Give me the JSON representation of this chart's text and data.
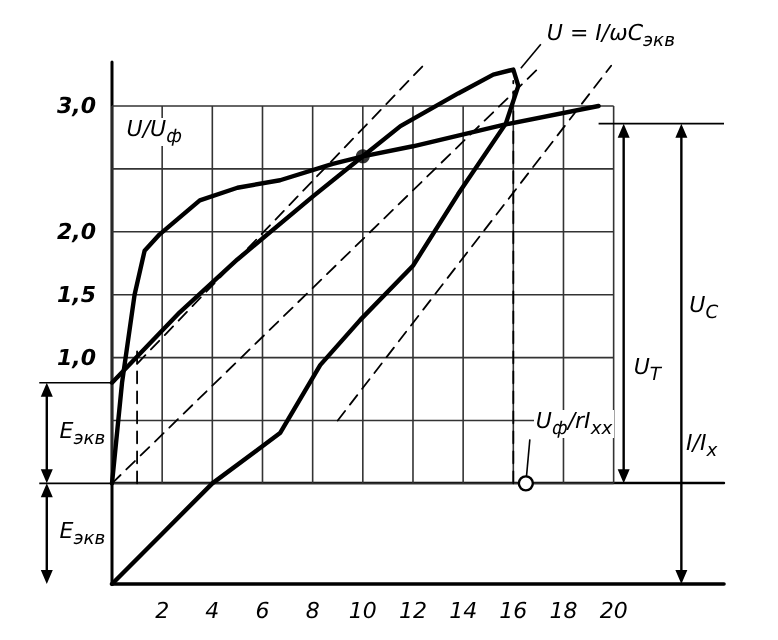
{
  "chart_data": {
    "type": "line",
    "xlabel": "I/I$_{x}$",
    "ylabel": "U/U$_{ф}$",
    "xlim": [
      0,
      24.4
    ],
    "ylim": [
      -0.8,
      3.35
    ],
    "xticks": [
      {
        "value": 0,
        "label": null
      },
      2,
      4,
      6,
      8,
      10,
      12,
      14,
      16,
      18,
      20
    ],
    "yticks": [
      {
        "value": 0,
        "label": null
      },
      {
        "value": 0.5,
        "label": null
      },
      {
        "value": 1,
        "label": "1,0"
      },
      {
        "value": 1.5,
        "label": "1,5"
      },
      {
        "value": 2,
        "label": "2,0"
      },
      {
        "value": 2.5,
        "label": null
      },
      {
        "value": 3,
        "label": "3,0"
      }
    ],
    "grid": true,
    "series": [
      {
        "color": "#000000",
        "line_style": "solid",
        "x": [
          0,
          0.4,
          0.9,
          1.3,
          1.9,
          3.5,
          5,
          6.7,
          8.8,
          10,
          12,
          15.6,
          19.4
        ],
        "values": [
          0,
          0.8,
          1.5,
          1.85,
          1.98,
          2.25,
          2.35,
          2.41,
          2.54,
          2.6,
          2.68,
          2.85,
          3.0
        ]
      },
      {
        "color": "#000000",
        "line_style": "solid",
        "x": [
          0,
          2.7,
          5,
          8,
          10,
          11.5,
          13.8,
          15.2,
          16,
          16.2,
          15.7,
          13.8,
          12,
          9.9,
          8.3,
          6.7,
          4,
          2,
          0
        ],
        "values": [
          0.8,
          1.36,
          1.78,
          2.28,
          2.6,
          2.84,
          3.1,
          3.25,
          3.29,
          3.16,
          2.86,
          2.3,
          1.73,
          1.3,
          0.94,
          0.4,
          0,
          -0.4,
          -0.8
        ]
      },
      {
        "color": "#000000",
        "line_style": "dashed",
        "x": [
          0,
          17
        ],
        "values": [
          0,
          3.3
        ]
      },
      {
        "color": "#000000",
        "line_style": "dashed",
        "x": [
          1,
          12.4
        ],
        "values": [
          0.95,
          3.32
        ]
      },
      {
        "color": "#000000",
        "line_style": "dashed",
        "x": [
          9,
          19.9
        ],
        "values": [
          0.5,
          3.32
        ]
      },
      {
        "color": "#000000",
        "line_style": "dashed",
        "x": [
          1,
          1
        ],
        "values": [
          0,
          1.05
        ]
      },
      {
        "color": "#000000",
        "line_style": "dashed",
        "x": [
          16,
          16
        ],
        "values": [
          0,
          3.2
        ]
      },
      {
        "type": "scatter",
        "color": "#000000",
        "x": [
          10
        ],
        "values": [
          2.6
        ]
      }
    ],
    "annotations": [
      {
        "text": "U = I/ωC$_{экв}$",
        "x": 16.3,
        "y": 3.3
      },
      "U$_{T}$",
      "U$_{C}$",
      "E$_{экв}$",
      "E$_{экв}$",
      {
        "text": "U$_{ф}$/rI$_{xx}$",
        "x": 16.5,
        "y": 0
      }
    ]
  }
}
